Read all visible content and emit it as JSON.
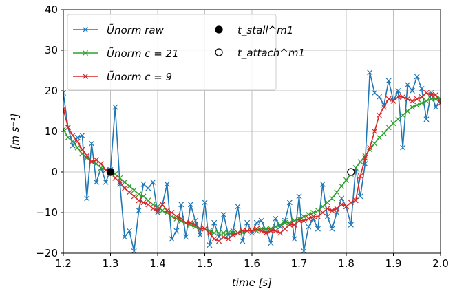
{
  "chart_data": {
    "type": "line",
    "xlabel": "time [s]",
    "ylabel": "[m s⁻¹]",
    "xlim": [
      1.2,
      2.0
    ],
    "ylim": [
      -20,
      40
    ],
    "xticks": [
      1.2,
      1.3,
      1.4,
      1.5,
      1.6,
      1.7,
      1.8,
      1.9,
      2.0
    ],
    "xtick_labels": [
      "1.2",
      "1.3",
      "1.4",
      "1.5",
      "1.6",
      "1.7",
      "1.8",
      "1.9",
      "2.0"
    ],
    "yticks": [
      -20,
      -10,
      0,
      10,
      20,
      30,
      40
    ],
    "ytick_labels": [
      "−20",
      "−10",
      "0",
      "10",
      "20",
      "30",
      "40"
    ],
    "grid": true,
    "legend_placement": "top-left, two columns",
    "series": [
      {
        "name": "Ũnorm raw",
        "color": "#1f77b4",
        "marker": "x",
        "x": [
          1.2,
          1.21,
          1.22,
          1.23,
          1.24,
          1.25,
          1.26,
          1.27,
          1.28,
          1.29,
          1.3,
          1.31,
          1.32,
          1.33,
          1.34,
          1.35,
          1.36,
          1.37,
          1.38,
          1.39,
          1.4,
          1.41,
          1.42,
          1.43,
          1.44,
          1.45,
          1.46,
          1.47,
          1.48,
          1.49,
          1.5,
          1.51,
          1.52,
          1.53,
          1.54,
          1.55,
          1.56,
          1.57,
          1.58,
          1.59,
          1.6,
          1.61,
          1.62,
          1.63,
          1.64,
          1.65,
          1.66,
          1.67,
          1.68,
          1.69,
          1.7,
          1.71,
          1.72,
          1.73,
          1.74,
          1.75,
          1.76,
          1.77,
          1.78,
          1.79,
          1.8,
          1.81,
          1.82,
          1.83,
          1.84,
          1.85,
          1.86,
          1.87,
          1.88,
          1.89,
          1.9,
          1.91,
          1.92,
          1.93,
          1.94,
          1.95,
          1.96,
          1.97,
          1.98,
          1.99,
          2.0
        ],
        "y": [
          19.5,
          11,
          6.5,
          8.5,
          9,
          -6.5,
          7,
          -2.5,
          1,
          -2.5,
          0.5,
          16,
          -3,
          -16,
          -14.5,
          -19.5,
          -9.5,
          -3,
          -4,
          -2.5,
          -10,
          -8,
          -3,
          -16.5,
          -14.5,
          -8,
          -16,
          -8,
          -12,
          -15.5,
          -7.5,
          -18,
          -12.5,
          -16,
          -10.5,
          -15.5,
          -14.5,
          -8.5,
          -17,
          -12.5,
          -15,
          -12.5,
          -12,
          -14.5,
          -17.5,
          -11.5,
          -13.5,
          -12,
          -7.5,
          -16.5,
          -6,
          -19.5,
          -13.5,
          -11.5,
          -14,
          -3,
          -11,
          -14,
          -10,
          -6.5,
          -8.5,
          -13,
          1,
          -6,
          2,
          24.5,
          19.5,
          18.5,
          16.5,
          22.5,
          17.5,
          20,
          6,
          21.5,
          20,
          23.5,
          20.5,
          13,
          19.5,
          16,
          18
        ]
      },
      {
        "name": "Ũnorm c = 21",
        "color": "#2ca02c",
        "marker": "x",
        "x": [
          1.2,
          1.21,
          1.22,
          1.23,
          1.24,
          1.25,
          1.26,
          1.27,
          1.28,
          1.29,
          1.3,
          1.31,
          1.32,
          1.33,
          1.34,
          1.35,
          1.36,
          1.37,
          1.38,
          1.39,
          1.4,
          1.41,
          1.42,
          1.43,
          1.44,
          1.45,
          1.46,
          1.47,
          1.48,
          1.49,
          1.5,
          1.51,
          1.52,
          1.53,
          1.54,
          1.55,
          1.56,
          1.57,
          1.58,
          1.59,
          1.6,
          1.61,
          1.62,
          1.63,
          1.64,
          1.65,
          1.66,
          1.67,
          1.68,
          1.69,
          1.7,
          1.71,
          1.72,
          1.73,
          1.74,
          1.75,
          1.76,
          1.77,
          1.78,
          1.79,
          1.8,
          1.81,
          1.82,
          1.83,
          1.84,
          1.85,
          1.86,
          1.87,
          1.88,
          1.89,
          1.9,
          1.91,
          1.92,
          1.93,
          1.94,
          1.95,
          1.96,
          1.97,
          1.98,
          1.99,
          2.0
        ],
        "y": [
          10.5,
          8.5,
          7.5,
          6,
          4.5,
          3.5,
          2.5,
          2,
          1,
          0.5,
          0,
          -0.5,
          -1.5,
          -2.5,
          -3.5,
          -4.5,
          -5.5,
          -6,
          -7,
          -8,
          -8.5,
          -9.5,
          -10,
          -11,
          -11.5,
          -12,
          -12.5,
          -13,
          -13.5,
          -14,
          -14,
          -14.5,
          -15,
          -15,
          -15,
          -15,
          -15,
          -15,
          -15,
          -14.5,
          -14.5,
          -14.5,
          -14,
          -14,
          -14,
          -13.5,
          -13,
          -12.5,
          -12.5,
          -12,
          -11.5,
          -11,
          -10.5,
          -10,
          -9.5,
          -8.5,
          -7.5,
          -6.5,
          -5,
          -3.5,
          -2,
          -0.5,
          1,
          2.5,
          4,
          5.5,
          7,
          8.5,
          9.5,
          11,
          12,
          13,
          14,
          15,
          16,
          16.5,
          17,
          17.5,
          18,
          18,
          18
        ]
      },
      {
        "name": "Ũnorm c = 9",
        "color": "#d62728",
        "marker": "x",
        "x": [
          1.2,
          1.21,
          1.22,
          1.23,
          1.24,
          1.25,
          1.26,
          1.27,
          1.28,
          1.29,
          1.3,
          1.31,
          1.32,
          1.33,
          1.34,
          1.35,
          1.36,
          1.37,
          1.38,
          1.39,
          1.4,
          1.41,
          1.42,
          1.43,
          1.44,
          1.45,
          1.46,
          1.47,
          1.48,
          1.49,
          1.5,
          1.51,
          1.52,
          1.53,
          1.54,
          1.55,
          1.56,
          1.57,
          1.58,
          1.59,
          1.6,
          1.61,
          1.62,
          1.63,
          1.64,
          1.65,
          1.66,
          1.67,
          1.68,
          1.69,
          1.7,
          1.71,
          1.72,
          1.73,
          1.74,
          1.75,
          1.76,
          1.77,
          1.78,
          1.79,
          1.8,
          1.81,
          1.82,
          1.83,
          1.84,
          1.85,
          1.86,
          1.87,
          1.88,
          1.89,
          1.9,
          1.91,
          1.92,
          1.93,
          1.94,
          1.95,
          1.96,
          1.97,
          1.98,
          1.99,
          2.0
        ],
        "y": [
          15.5,
          11,
          9,
          7.5,
          5.5,
          4,
          2.5,
          3,
          2,
          0.5,
          0,
          -1.5,
          -2.5,
          -4,
          -5,
          -6,
          -7,
          -7.5,
          -8,
          -9,
          -9.5,
          -8,
          -9.5,
          -10,
          -11,
          -11.5,
          -12.5,
          -12.5,
          -13,
          -14,
          -14,
          -15,
          -16.5,
          -17,
          -16,
          -16.5,
          -15.5,
          -15,
          -14.5,
          -14.5,
          -14.5,
          -14,
          -14.5,
          -15,
          -14.5,
          -14.5,
          -15,
          -14,
          -13,
          -13,
          -12,
          -12,
          -11.5,
          -11,
          -11,
          -10,
          -9,
          -9.5,
          -9,
          -8,
          -8.5,
          -7.5,
          -7,
          -1,
          3.5,
          6,
          10,
          14,
          16,
          18,
          17.5,
          18.5,
          18.5,
          18,
          17.5,
          18,
          18.5,
          19.5,
          19,
          19,
          17
        ]
      }
    ],
    "points": [
      {
        "name": "t_stall^m1",
        "x": 1.3,
        "y": 0,
        "fill": "filled"
      },
      {
        "name": "t_attach^m1",
        "x": 1.81,
        "y": 0,
        "fill": "open"
      }
    ]
  }
}
